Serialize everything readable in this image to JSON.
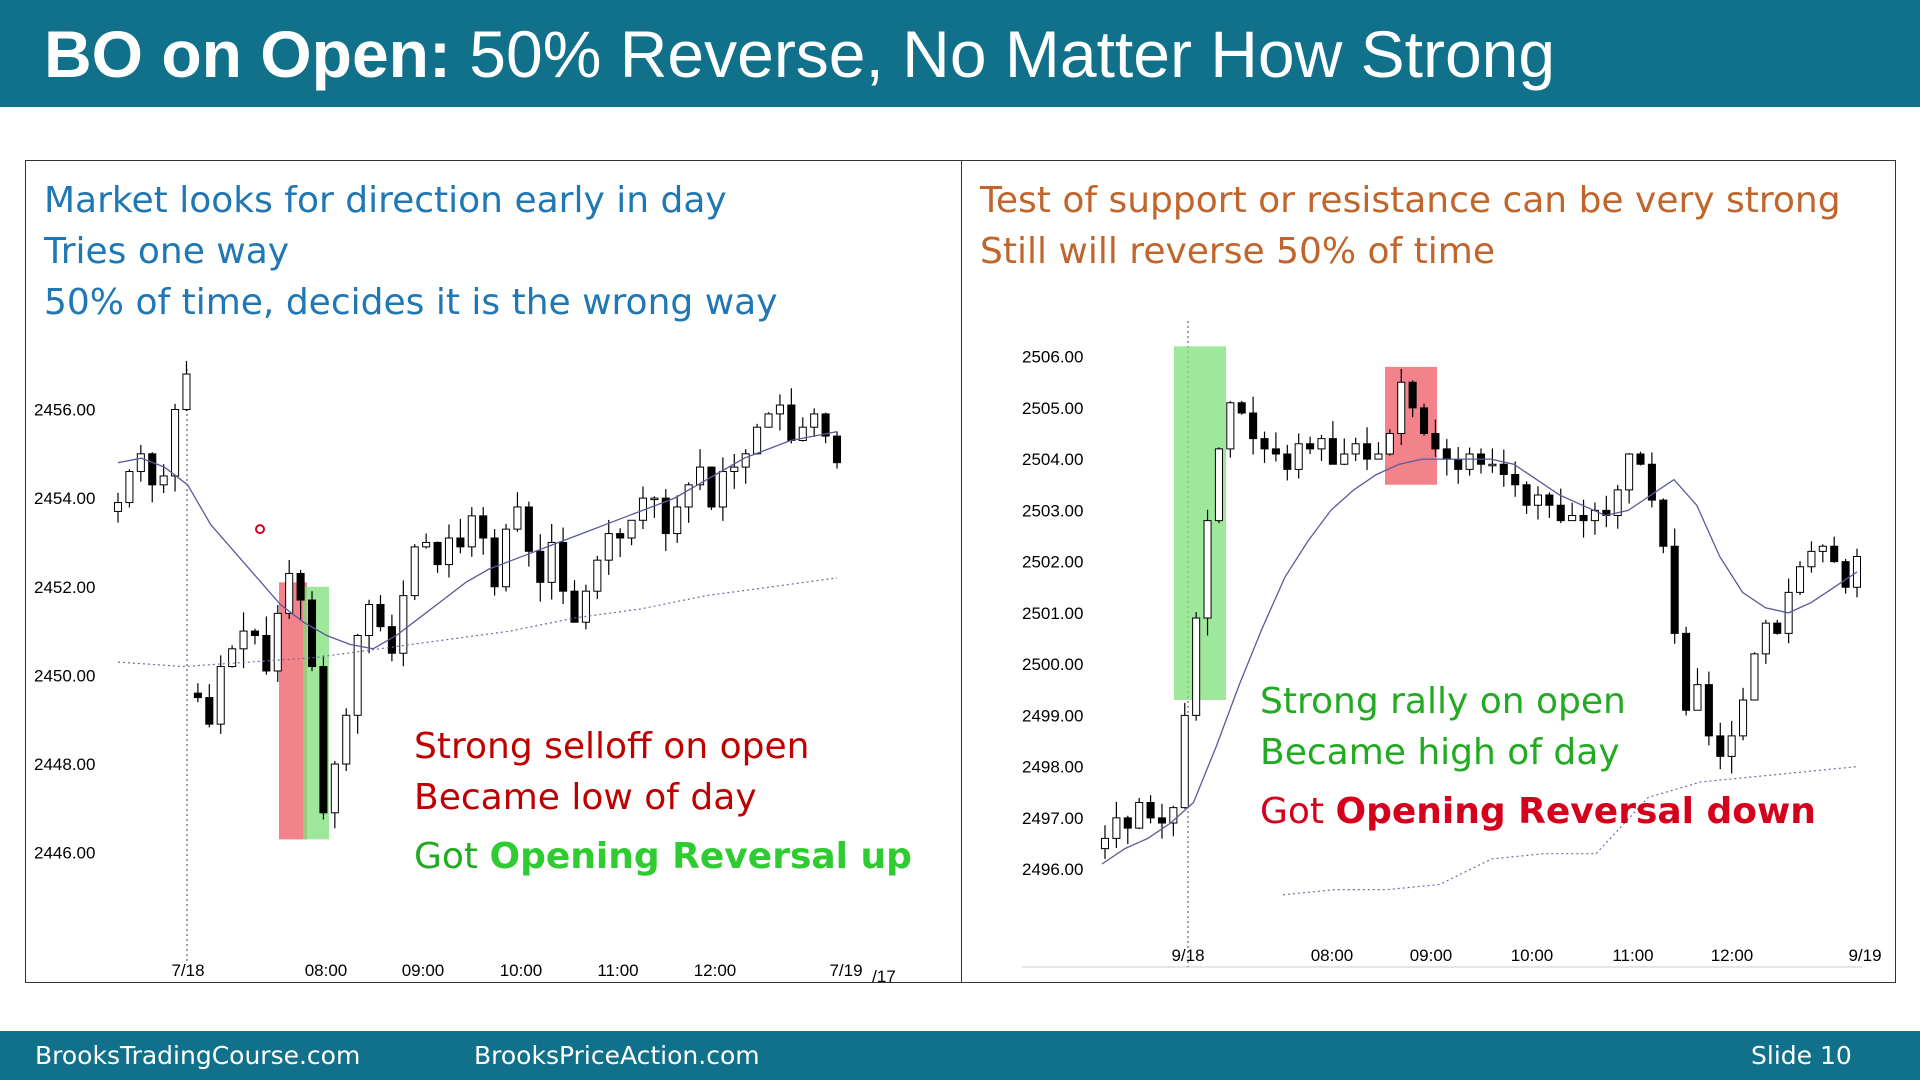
{
  "slide": {
    "title_bold": "BO on Open:",
    "title_rest": " 50% Reverse, No Matter How Strong",
    "footer": {
      "left": "BrooksTradingCourse.com",
      "center": "BrooksPriceAction.com",
      "right": "Slide  10"
    }
  },
  "left_panel": {
    "lines": [
      "Market looks for direction early in day",
      "Tries one way",
      "50% of time, decides it is the wrong way"
    ],
    "annotation": {
      "line1": "Strong selloff on open",
      "line2": "Became low of day",
      "line3_prefix": "Got ",
      "line3_bold": "Opening Reversal up"
    },
    "colors": {
      "text": "#1f77b4",
      "annotation": "#c00000",
      "emphasis": "#2ecc30"
    }
  },
  "right_panel": {
    "lines": [
      "Test of support or resistance can be very strong",
      "Still will reverse 50% of time"
    ],
    "annotation": {
      "line1": "Strong rally on open",
      "line2": "Became high of day",
      "line3_prefix": "Got ",
      "line3_bold": "Opening Reversal down"
    },
    "colors": {
      "text": "#c0652b",
      "annotation_green": "#22aa22",
      "annotation_red": "#d4001c"
    }
  },
  "chart_data": [
    {
      "type": "candlestick",
      "title": "",
      "ylim": [
        2445.0,
        2457.5
      ],
      "yticks": [
        2446.0,
        2448.0,
        2450.0,
        2452.0,
        2454.0,
        2456.0
      ],
      "ytick_labels": [
        "2446.00",
        "2448.00",
        "2450.00",
        "2452.00",
        "2454.00",
        "2456.00"
      ],
      "xtick_labels": [
        "7/18",
        "08:00",
        "09:00",
        "10:00",
        "11:00",
        "12:00",
        "7/19",
        "/17"
      ],
      "close_path": [
        2453.9,
        2454.6,
        2455.0,
        2454.3,
        2454.5,
        2456.0,
        2456.8,
        2449.5,
        2448.9,
        2450.2,
        2450.6,
        2451.0,
        2450.9,
        2450.1,
        2451.4,
        2452.3,
        2451.7,
        2450.2,
        2446.9,
        2448.0,
        2449.1,
        2450.9,
        2451.6,
        2451.1,
        2450.5,
        2451.8,
        2452.9,
        2453.0,
        2452.5,
        2453.1,
        2452.9,
        2453.6,
        2453.1,
        2452.0,
        2453.3,
        2453.8,
        2452.8,
        2452.1,
        2453.0,
        2451.9,
        2451.2,
        2451.9,
        2452.6,
        2453.2,
        2453.1,
        2453.5,
        2454.0,
        2454.0,
        2453.2,
        2453.8,
        2454.3,
        2454.7,
        2453.8,
        2454.6,
        2454.7,
        2455.0,
        2455.6,
        2455.9,
        2456.1,
        2455.3,
        2455.6,
        2455.9,
        2455.4,
        2454.8
      ],
      "ema": [
        2454.8,
        2454.9,
        2454.7,
        2454.3,
        2453.4,
        2452.8,
        2452.2,
        2451.6,
        2451.2,
        2450.9,
        2450.7,
        2450.6,
        2450.9,
        2451.3,
        2451.7,
        2452.1,
        2452.4,
        2452.6,
        2452.8,
        2453.0,
        2453.2,
        2453.4,
        2453.6,
        2453.8,
        2454.0,
        2454.3,
        2454.6,
        2454.9,
        2455.1,
        2455.3,
        2455.4,
        2455.5
      ],
      "prior_day_line": [
        2450.3,
        2450.2,
        2450.3,
        2450.4,
        2450.6,
        2450.8,
        2451.0,
        2451.3,
        2451.5,
        2451.8,
        2452.0,
        2452.2
      ],
      "shaded_zones": [
        {
          "color": "red",
          "ymin": 2446.3,
          "ymax": 2452.1
        },
        {
          "color": "green",
          "ymin": 2446.3,
          "ymax": 2452.0
        }
      ],
      "marker": {
        "y": 2453.3
      }
    },
    {
      "type": "candlestick",
      "title": "",
      "ylim": [
        2495.3,
        2506.5
      ],
      "yticks": [
        2496.0,
        2497.0,
        2498.0,
        2499.0,
        2500.0,
        2501.0,
        2502.0,
        2503.0,
        2504.0,
        2505.0,
        2506.0
      ],
      "ytick_labels": [
        "2496.00",
        "2497.00",
        "2498.00",
        "2499.00",
        "2500.00",
        "2501.00",
        "2502.00",
        "2503.00",
        "2504.00",
        "2505.00",
        "2506.00"
      ],
      "xtick_labels": [
        "9/18",
        "08:00",
        "09:00",
        "10:00",
        "11:00",
        "12:00",
        "9/19"
      ],
      "close_path": [
        2496.6,
        2497.0,
        2496.8,
        2497.3,
        2497.0,
        2496.9,
        2497.2,
        2499.0,
        2500.9,
        2502.8,
        2504.2,
        2505.1,
        2504.9,
        2504.4,
        2504.2,
        2504.1,
        2503.8,
        2504.3,
        2504.2,
        2504.4,
        2503.9,
        2504.1,
        2504.3,
        2504.0,
        2504.1,
        2504.5,
        2505.5,
        2505.0,
        2504.5,
        2504.2,
        2504.0,
        2503.8,
        2504.1,
        2503.9,
        2503.9,
        2503.7,
        2503.5,
        2503.1,
        2503.3,
        2503.1,
        2502.8,
        2502.9,
        2502.8,
        2503.0,
        2502.9,
        2503.4,
        2504.1,
        2503.9,
        2503.2,
        2502.3,
        2500.6,
        2499.1,
        2499.6,
        2498.6,
        2498.2,
        2498.6,
        2499.3,
        2500.2,
        2500.8,
        2500.6,
        2501.4,
        2501.9,
        2502.2,
        2502.3,
        2502.0,
        2501.5,
        2502.1
      ],
      "ema": [
        2496.1,
        2496.4,
        2496.6,
        2496.9,
        2497.3,
        2498.4,
        2499.6,
        2500.7,
        2501.7,
        2502.4,
        2503.0,
        2503.4,
        2503.7,
        2503.9,
        2504.0,
        2504.0,
        2504.0,
        2504.0,
        2503.9,
        2503.6,
        2503.3,
        2503.1,
        2502.9,
        2503.0,
        2503.3,
        2503.6,
        2503.1,
        2502.1,
        2501.4,
        2501.1,
        2501.0,
        2501.2,
        2501.5,
        2501.8
      ],
      "prior_day_line": [
        2495.5,
        2495.6,
        2495.6,
        2495.7,
        2496.2,
        2496.3,
        2496.3,
        2497.4,
        2497.7,
        2497.8,
        2497.9,
        2498.0
      ],
      "shaded_zones": [
        {
          "color": "green",
          "ymin": 2499.3,
          "ymax": 2506.2
        },
        {
          "color": "red",
          "ymin": 2503.5,
          "ymax": 2505.8
        }
      ]
    }
  ]
}
